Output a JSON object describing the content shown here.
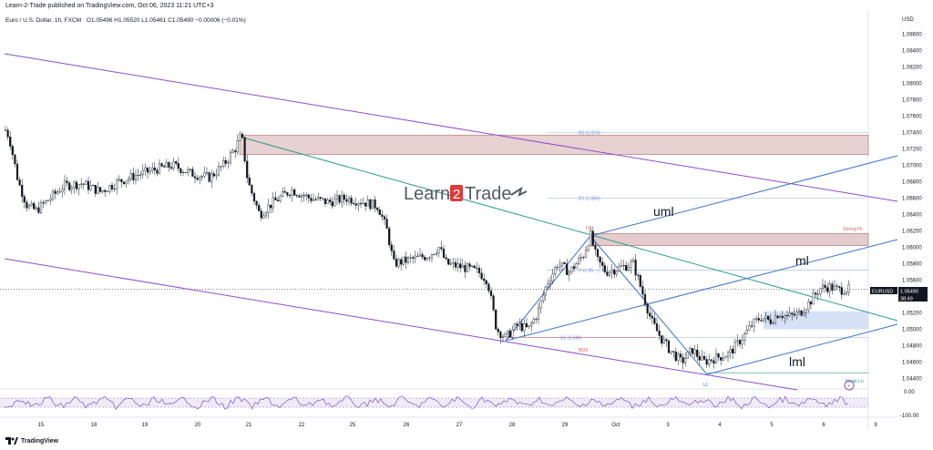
{
  "header": {
    "published": "Learn-2-Trade published on TradingView.com, Oct 06, 2023 11:21 UTC+3",
    "symbol": "Euro / U.S. Dollar, 1h, FXCM",
    "ohlc": "O1.05496 H1.05520 L1.05461 C1.05490 −0.00006 (−0.01%)"
  },
  "currency": "USD",
  "watermark": {
    "part1": "Learn",
    "part2": "Trade",
    "accent": "#e03a3a"
  },
  "footer": {
    "logo_text": "TradingView"
  },
  "colors": {
    "uml": "#3d74c9",
    "outer_channel": "#8b4fc9",
    "trendline": "#2e9e8a",
    "zone": "#c99a9a",
    "demand_zone": "#b7c8ee",
    "candle": "#131722",
    "rsi": "#7e57c2"
  },
  "chart_data": {
    "type": "candlestick",
    "title": "",
    "ylabel": "USD",
    "ylim": [
      1.0435,
      1.0875
    ],
    "y_ticks": [
      "1.08600",
      "1.08400",
      "1.08200",
      "1.08000",
      "1.07800",
      "1.07600",
      "1.07400",
      "1.07200",
      "1.07000",
      "1.06800",
      "1.06600",
      "1.06400",
      "1.06200",
      "1.06000",
      "1.05800",
      "1.05600",
      "1.05200",
      "1.05000",
      "1.04800",
      "1.04600",
      "1.04400"
    ],
    "x_ticks": [
      "15",
      "18",
      "19",
      "20",
      "21",
      "22",
      "25",
      "26",
      "27",
      "28",
      "29",
      "Oct",
      "3",
      "4",
      "5",
      "6",
      "9"
    ],
    "last_price": {
      "symbol": "EURUSD",
      "value": "1.05490",
      "countdown": "38:49"
    },
    "line_annotations": [
      "uml",
      "ml",
      "lml"
    ],
    "pivot_levels": [
      {
        "label": "R2 (1.074)",
        "value": 1.074
      },
      {
        "label": "R1 (1.066)",
        "value": 1.066
      },
      {
        "label": "P (1.05…)",
        "value": 1.0572
      },
      {
        "label": "S1 (1.049)",
        "value": 1.049
      }
    ],
    "markers": [
      "LH",
      "BOS",
      "LL",
      "Strong Hi",
      "Weak Lo"
    ],
    "approx_close_path": [
      [
        0,
        1.0755
      ],
      [
        10,
        1.0735
      ],
      [
        20,
        1.068
      ],
      [
        30,
        1.065
      ],
      [
        40,
        1.0645
      ],
      [
        55,
        1.066
      ],
      [
        70,
        1.0675
      ],
      [
        90,
        1.0678
      ],
      [
        110,
        1.0668
      ],
      [
        130,
        1.068
      ],
      [
        150,
        1.0688
      ],
      [
        170,
        1.0695
      ],
      [
        190,
        1.07
      ],
      [
        210,
        1.069
      ],
      [
        230,
        1.0685
      ],
      [
        245,
        1.07
      ],
      [
        258,
        1.072
      ],
      [
        265,
        1.0738
      ],
      [
        272,
        1.068
      ],
      [
        285,
        1.064
      ],
      [
        300,
        1.0655
      ],
      [
        320,
        1.067
      ],
      [
        340,
        1.066
      ],
      [
        360,
        1.0655
      ],
      [
        380,
        1.066
      ],
      [
        400,
        1.0655
      ],
      [
        415,
        1.065
      ],
      [
        425,
        1.062
      ],
      [
        432,
        1.058
      ],
      [
        450,
        1.0585
      ],
      [
        470,
        1.059
      ],
      [
        482,
        1.06
      ],
      [
        490,
        1.058
      ],
      [
        510,
        1.0575
      ],
      [
        525,
        1.057
      ],
      [
        535,
        1.056
      ],
      [
        545,
        1.05
      ],
      [
        555,
        1.049
      ],
      [
        568,
        1.0505
      ],
      [
        580,
        1.05
      ],
      [
        590,
        1.052
      ],
      [
        600,
        1.0555
      ],
      [
        612,
        1.058
      ],
      [
        625,
        1.057
      ],
      [
        640,
        1.059
      ],
      [
        648,
        1.0615
      ],
      [
        655,
        1.0585
      ],
      [
        665,
        1.057
      ],
      [
        680,
        1.0575
      ],
      [
        695,
        1.058
      ],
      [
        705,
        1.0545
      ],
      [
        715,
        1.051
      ],
      [
        725,
        1.049
      ],
      [
        735,
        1.0475
      ],
      [
        748,
        1.046
      ],
      [
        760,
        1.0475
      ],
      [
        772,
        1.046
      ],
      [
        785,
        1.0465
      ],
      [
        800,
        1.047
      ],
      [
        815,
        1.049
      ],
      [
        825,
        1.0505
      ],
      [
        835,
        1.0515
      ],
      [
        845,
        1.051
      ],
      [
        855,
        1.052
      ],
      [
        865,
        1.0515
      ],
      [
        878,
        1.052
      ],
      [
        890,
        1.0535
      ],
      [
        900,
        1.055
      ],
      [
        910,
        1.0552
      ],
      [
        920,
        1.0548
      ],
      [
        932,
        1.0549
      ]
    ]
  },
  "rsi": {
    "tick_top": "0.00",
    "tick_bottom": "-100.00"
  }
}
